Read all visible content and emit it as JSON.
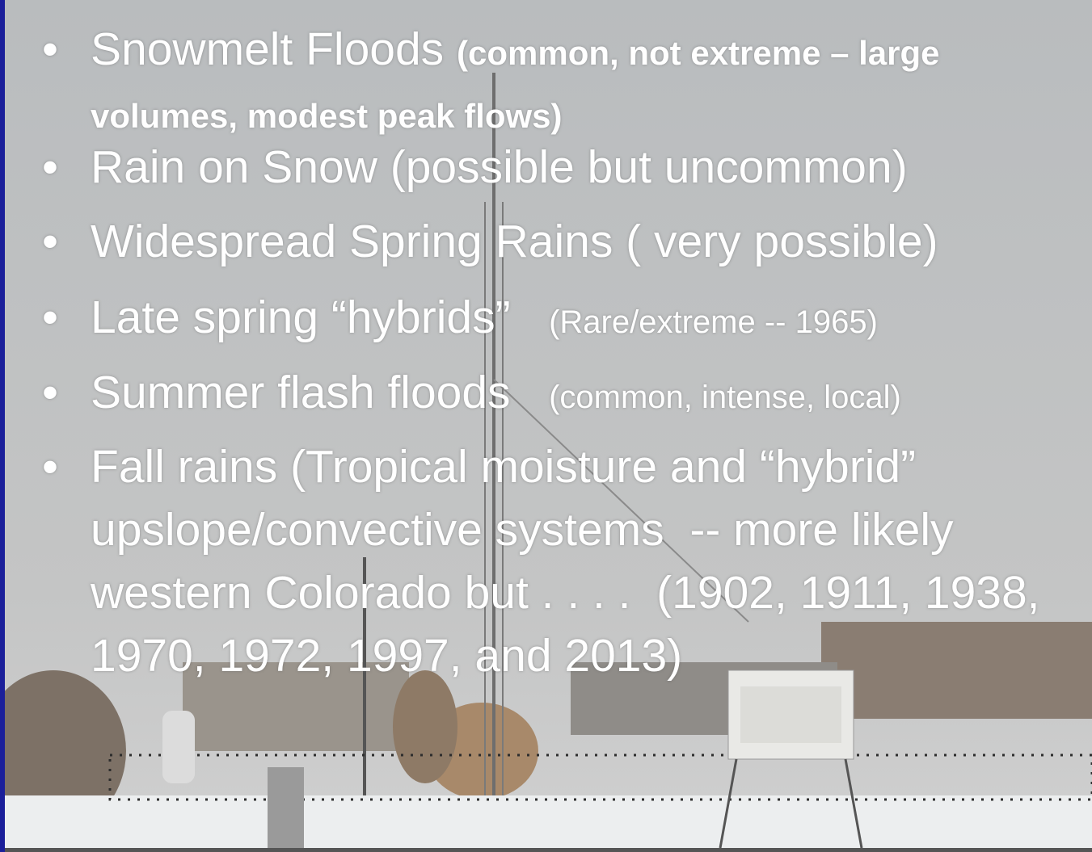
{
  "bullets": [
    {
      "text": "Snowmelt Floods",
      "note": "(common, not extreme – large volumes, modest peak flows)"
    },
    {
      "text": "Rain on Snow (possible but uncommon)"
    },
    {
      "text": "Widespread Spring Rains ( very possible)"
    },
    {
      "text": "Late spring “hybrids”",
      "note": "(Rare/extreme -- 1965)"
    },
    {
      "text": "Summer flash floods",
      "note": "(common, intense, local)"
    },
    {
      "text": "Fall rains (Tropical moisture and “hybrid” upslope/convective systems  -- more likely western Colorado but . . . .  (1902, 1911, 1938, 1970, 1972, 1997, and 2013)"
    }
  ]
}
